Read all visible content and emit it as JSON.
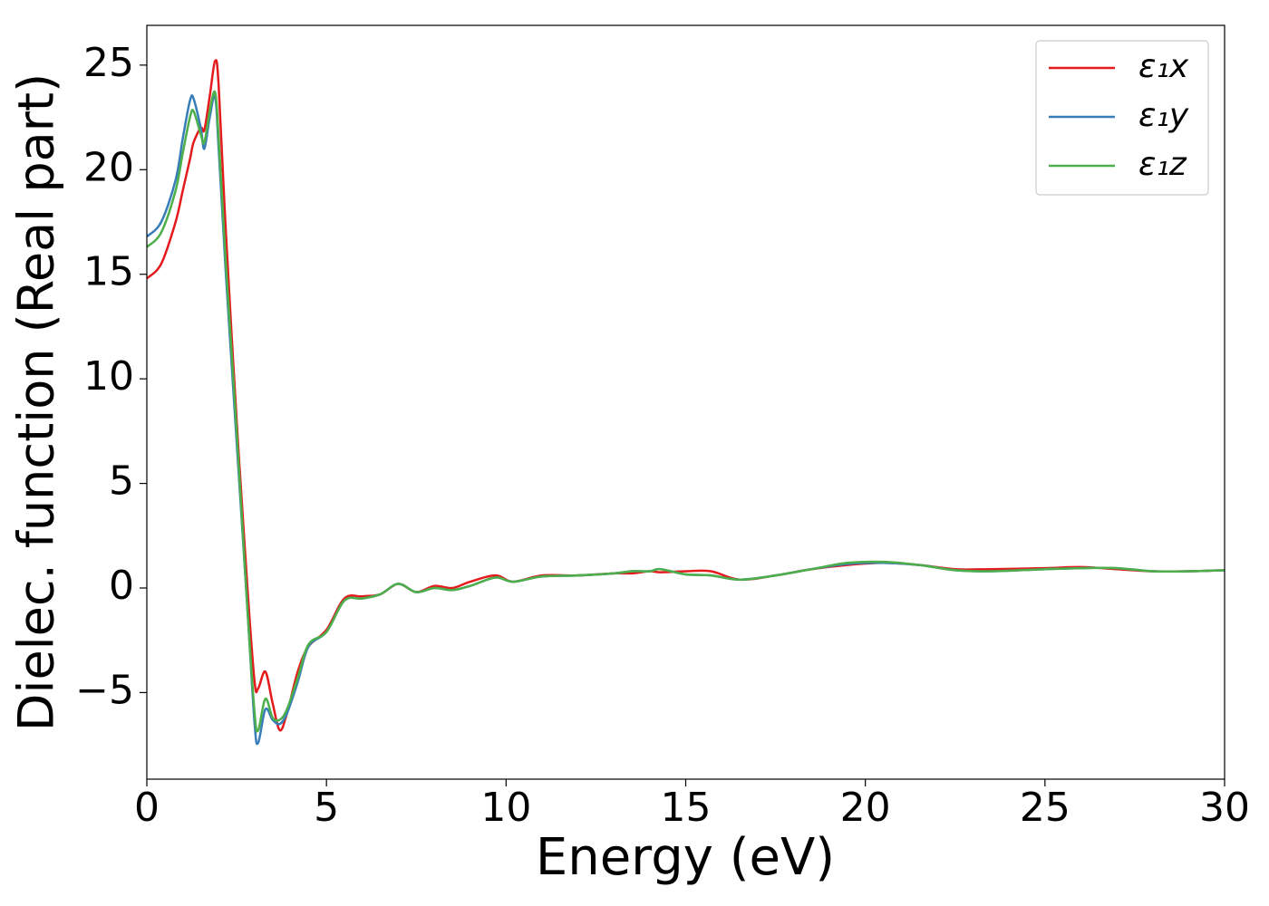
{
  "chart_data": {
    "type": "line",
    "x_label": "Energy (eV)",
    "y_label": "Dielec. function (Real part)",
    "xlim": [
      0,
      30
    ],
    "ylim": [
      -9.14,
      26.9
    ],
    "xticks": [
      0,
      5,
      10,
      15,
      20,
      25,
      30
    ],
    "yticks": [
      {
        "value": -5,
        "label": "−5"
      },
      0,
      5,
      10,
      15,
      20,
      25
    ],
    "grid": false,
    "legend": "upper right",
    "x": [
      0,
      0.4,
      0.8,
      1.0,
      1.2,
      1.3,
      1.5,
      1.6,
      1.75,
      1.9,
      2.0,
      2.2,
      2.5,
      2.8,
      3.0,
      3.1,
      3.3,
      3.5,
      3.7,
      3.9,
      4.2,
      4.5,
      5.0,
      5.5,
      6.0,
      6.5,
      7.0,
      7.5,
      8.0,
      8.5,
      9.0,
      9.7,
      10.2,
      11,
      12,
      13,
      13.5,
      14,
      14.3,
      15,
      15.7,
      16.5,
      17.5,
      18.5,
      19.5,
      20.5,
      21.5,
      22.5,
      23.5,
      25,
      26,
      27,
      28,
      29,
      30
    ],
    "series": [
      {
        "name": "ε₁x",
        "color": "#e41a1c",
        "values": [
          14.8,
          15.5,
          17.5,
          19,
          20.5,
          21.3,
          22,
          21.9,
          23.5,
          25.2,
          24,
          17,
          8,
          0,
          -4.5,
          -4.8,
          -4,
          -5.5,
          -6.8,
          -6,
          -4,
          -2.8,
          -2,
          -0.5,
          -0.4,
          -0.3,
          0.2,
          -0.2,
          0.1,
          0,
          0.3,
          0.6,
          0.3,
          0.6,
          0.6,
          0.7,
          0.7,
          0.8,
          0.75,
          0.8,
          0.8,
          0.4,
          0.6,
          0.9,
          1.1,
          1.2,
          1.1,
          0.9,
          0.9,
          0.95,
          1.0,
          0.9,
          0.8,
          0.8,
          0.85
        ]
      },
      {
        "name": "ε₁y",
        "color": "#377eb8",
        "values": [
          16.8,
          17.5,
          19.5,
          21.5,
          23.3,
          23.4,
          22,
          21,
          22.5,
          23.5,
          21,
          15,
          7,
          -1,
          -6.5,
          -7.4,
          -5.8,
          -6.3,
          -6.5,
          -6,
          -4.5,
          -2.8,
          -2.1,
          -0.6,
          -0.5,
          -0.3,
          0.2,
          -0.2,
          0,
          -0.1,
          0.1,
          0.5,
          0.3,
          0.55,
          0.6,
          0.7,
          0.8,
          0.8,
          0.9,
          0.65,
          0.6,
          0.4,
          0.6,
          0.9,
          1.15,
          1.2,
          1.1,
          0.85,
          0.8,
          0.9,
          0.95,
          0.95,
          0.8,
          0.8,
          0.85
        ]
      },
      {
        "name": "ε₁z",
        "color": "#4daf4a",
        "values": [
          16.3,
          17,
          19,
          20.8,
          22.5,
          22.8,
          21.7,
          21.3,
          22.8,
          23.7,
          21.5,
          15.5,
          7.5,
          -1,
          -6,
          -6.8,
          -5.3,
          -6.2,
          -6.3,
          -5.8,
          -4.3,
          -2.7,
          -2.1,
          -0.6,
          -0.5,
          -0.3,
          0.2,
          -0.2,
          0,
          -0.1,
          0.1,
          0.5,
          0.3,
          0.55,
          0.6,
          0.7,
          0.8,
          0.8,
          0.9,
          0.65,
          0.6,
          0.4,
          0.6,
          0.9,
          1.2,
          1.25,
          1.1,
          0.85,
          0.8,
          0.9,
          0.95,
          0.95,
          0.8,
          0.8,
          0.85
        ]
      }
    ]
  }
}
